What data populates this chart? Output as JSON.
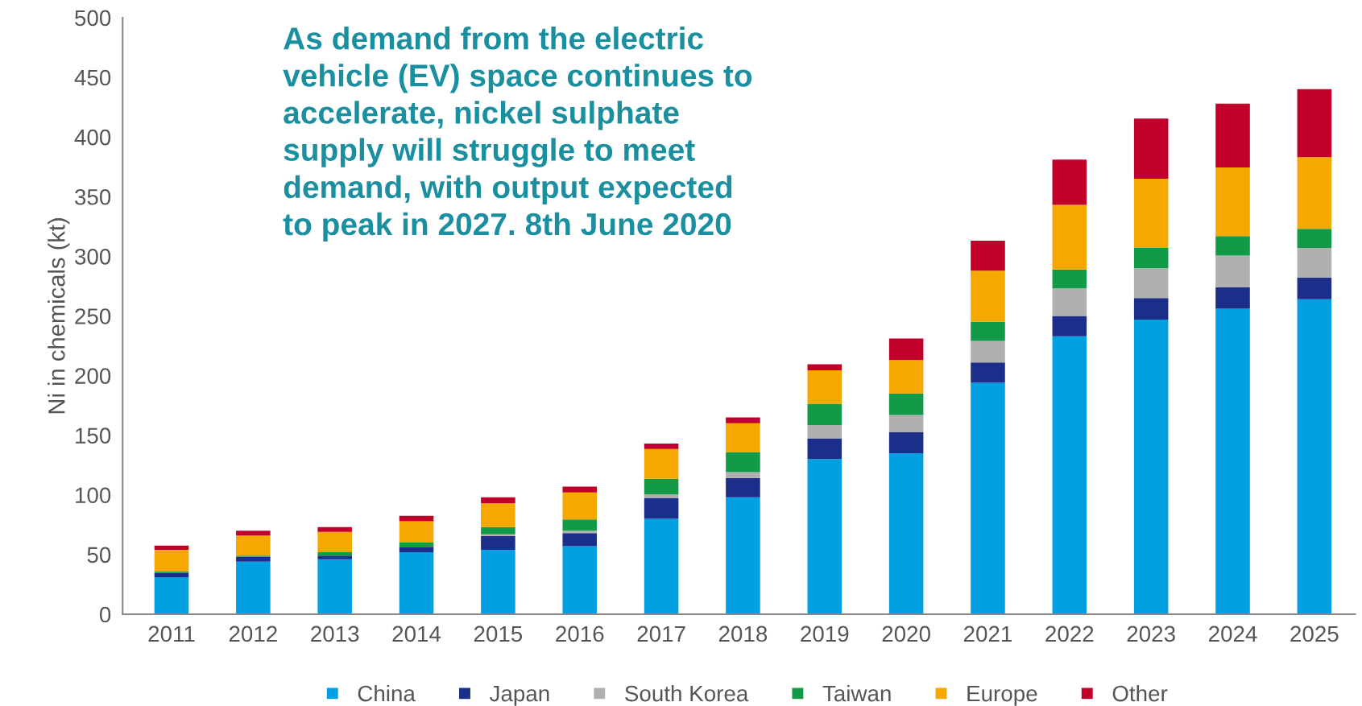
{
  "chart_data": {
    "type": "bar",
    "stacked": true,
    "title": "As demand from the electric\nvehicle (EV) space continues to\naccelerate, nickel sulphate\nsupply will struggle to meet\ndemand, with output expected\nto peak in 2027. 8th June 2020",
    "ylabel": "Ni in chemicals (kt)",
    "categories": [
      "2011",
      "2012",
      "2013",
      "2014",
      "2015",
      "2016",
      "2017",
      "2018",
      "2019",
      "2020",
      "2021",
      "2022",
      "2023",
      "2024",
      "2025"
    ],
    "series": [
      {
        "name": "China",
        "color": "#00a0e3",
        "values": [
          31,
          44,
          46,
          52,
          54,
          57,
          80,
          98,
          130,
          135,
          194,
          233,
          247,
          256,
          264
        ]
      },
      {
        "name": "Japan",
        "color": "#1a2e8a",
        "values": [
          3.5,
          4,
          3,
          4,
          11.5,
          11,
          17.5,
          16,
          17.5,
          17.5,
          17,
          17,
          18,
          18,
          18
        ]
      },
      {
        "name": "South Korea",
        "color": "#b0b0b0",
        "values": [
          0,
          0,
          0,
          null,
          1.5,
          2,
          3,
          5,
          11,
          14.5,
          18,
          23,
          25,
          26.5,
          25
        ]
      },
      {
        "name": "Taiwan",
        "color": "#139a48",
        "values": [
          1.5,
          1,
          3,
          4,
          6,
          9.5,
          13,
          17,
          18,
          18,
          16,
          16,
          17,
          16.5,
          16
        ]
      },
      {
        "name": "Europe",
        "color": "#f5a800",
        "values": [
          18,
          17,
          17,
          18,
          20,
          22.5,
          25,
          24,
          28,
          28,
          43,
          54,
          58,
          57.5,
          60
        ]
      },
      {
        "name": "Other",
        "color": "#c0002a",
        "values": [
          3.5,
          4,
          4,
          4.5,
          5,
          5,
          4.5,
          5,
          5,
          18,
          25,
          38,
          50.5,
          53.5,
          57
        ]
      }
    ],
    "ylim": [
      0,
      500
    ],
    "yticks": [
      0,
      50,
      100,
      150,
      200,
      250,
      300,
      350,
      400,
      450,
      500
    ],
    "grid": false,
    "legend": "bottom"
  }
}
